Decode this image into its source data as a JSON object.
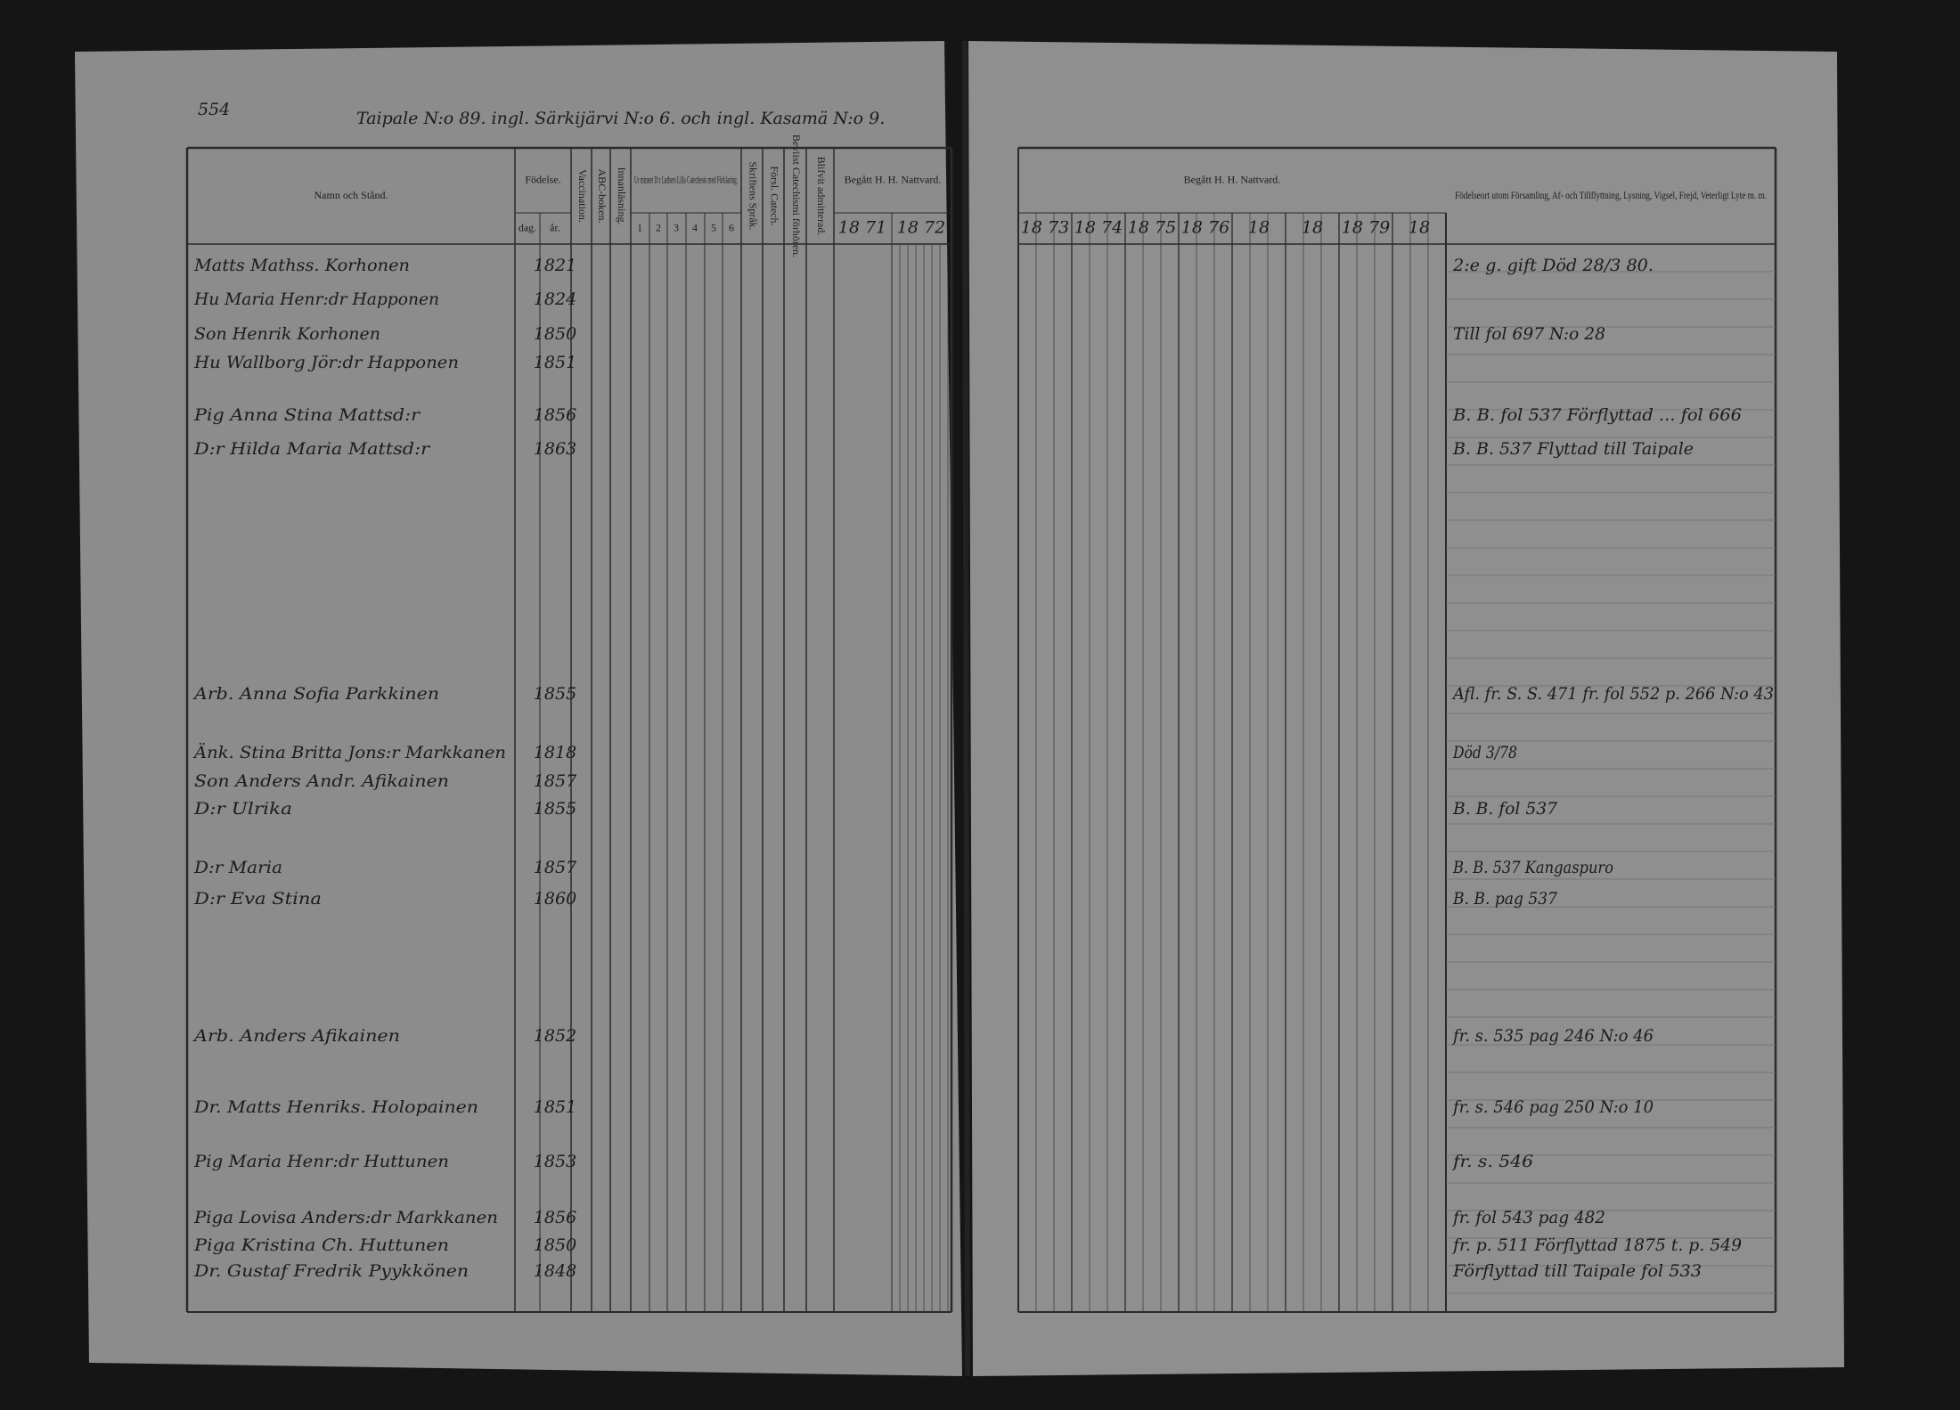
{
  "left_page": {
    "page_number": "554",
    "title": "Taipale N:o 89. ingl. Särkijärvi N:o 6. och ingl. Kasamä N:o 9."
  },
  "left_headers": [
    "Namn och Stånd.",
    "Födelse.",
    "Vaccination.",
    "ABC-boken.",
    "Innanläsning.",
    "Ur minnet D:r Luthers Lilla Catechesis med Förklaring.",
    "Skriftens Språk.",
    "Försl. Catech.",
    "Beviist Catechismi förhören.",
    "Blifvit admitterad.",
    "Begått H. H. Nattvard."
  ],
  "left_subheaders": [
    "dag.",
    "år.",
    "1",
    "2",
    "3",
    "4",
    "5",
    "6",
    "18 71",
    "18 72"
  ],
  "right_headers": {
    "communion": "Begått H. H. Nattvard.",
    "notes": "Födelseort utom Församling, Af- och Tillflyttning, Lysning, Vigsel, Frejd, Veterligt Lyte m. m.",
    "years": [
      "18 73",
      "18 74",
      "18 75",
      "18 76",
      "18",
      "18",
      "18 79",
      "18"
    ]
  },
  "rows": [
    {
      "name": "Matts Mathss. Korhonen",
      "year": "1821",
      "note": "2:e g. gift  Död 28/3 80."
    },
    {
      "name": "Hu Maria Henr:dr Happonen",
      "year": "1824"
    },
    {
      "name": "Son Henrik Korhonen",
      "year": "1850",
      "note": "Till fol 697 N:o 28"
    },
    {
      "name": "Hu Wallborg Jör:dr Happonen",
      "year": "1851"
    },
    {
      "name": "Pig Anna Stina Mattsd:r",
      "year": "1856",
      "note": "B. B. fol 537 Förflyttad ... fol 666"
    },
    {
      "name": "D:r Hilda Maria Mattsd:r",
      "year": "1863",
      "note": "B. B. 537 Flyttad till Taipale"
    },
    {
      "name": "Arb. Anna Sofia Parkkinen",
      "year": "1855",
      "note": "Afl. fr. S. S. 471 fr. fol 552 p. 266 N:o 43"
    },
    {
      "name": "Änk. Stina Britta Jons:r Markkanen",
      "year": "1818",
      "note": "Död 3/78"
    },
    {
      "name": "Son Anders Andr. Afikainen",
      "year": "1857"
    },
    {
      "name": "D:r Ulrika",
      "year": "1855",
      "note": "B. B. fol 537"
    },
    {
      "name": "D:r Maria",
      "year": "1857",
      "note": "B. B. 537 Kangaspuro"
    },
    {
      "name": "D:r Eva Stina",
      "year": "1860",
      "note": "B. B. pag 537"
    },
    {
      "name": "Arb. Anders Afikainen",
      "year": "1852",
      "note": "fr. s. 535 pag 246 N:o 46"
    },
    {
      "name": "Dr. Matts Henriks. Holopainen",
      "year": "1851",
      "note": "fr. s. 546 pag 250 N:o 10"
    },
    {
      "name": "Pig Maria Henr:dr Huttunen",
      "year": "1853",
      "note": "fr. s. 546"
    },
    {
      "name": "Piga Lovisa Anders:dr Markkanen",
      "year": "1856",
      "note": "fr. fol 543 pag 482"
    },
    {
      "name": "Piga Kristina Ch. Huttunen",
      "year": "1850",
      "note": "fr. p. 511 Förflyttad 1875 t. p. 549"
    },
    {
      "name": "Dr. Gustaf Fredrik Pyykkönen",
      "year": "1848",
      "note": "Förflyttad till Taipale fol 533"
    }
  ]
}
